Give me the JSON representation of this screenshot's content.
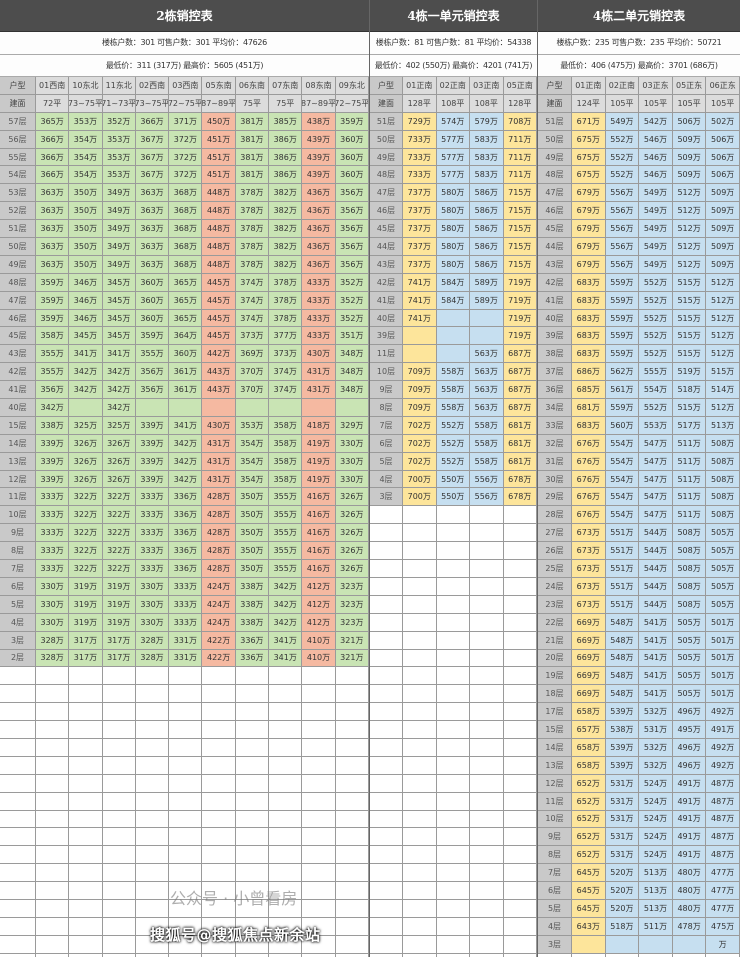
{
  "colors": {
    "green": "#c9e4b4",
    "salmon": "#f5b9a1",
    "yellow": "#fde59b",
    "blue": "#c6dff0"
  },
  "tables": [
    {
      "title": "2栋销控表",
      "info1": "楼栋户数：301 可售户数：301 平均价：47626",
      "info2": "最低价：311 (317万) 最高价：5605 (451万)",
      "type_label": "户型",
      "area_label": "建面",
      "columns": [
        {
          "name": "01西南",
          "area": "72平",
          "color": "green"
        },
        {
          "name": "10东北",
          "area": "73~75平",
          "color": "green"
        },
        {
          "name": "11东北",
          "area": "71~73平",
          "color": "green"
        },
        {
          "name": "02西南",
          "area": "73~75平",
          "color": "green"
        },
        {
          "name": "03西南",
          "area": "72~75平",
          "color": "green"
        },
        {
          "name": "05东南",
          "area": "87~89平",
          "color": "salmon"
        },
        {
          "name": "06东南",
          "area": "75平",
          "color": "green"
        },
        {
          "name": "07东南",
          "area": "75平",
          "color": "green"
        },
        {
          "name": "08东南",
          "area": "87~89平",
          "color": "salmon"
        },
        {
          "name": "09东北",
          "area": "72~75平",
          "color": "green"
        }
      ],
      "rows": [
        [
          "57层",
          "365万",
          "353万",
          "352万",
          "366万",
          "371万",
          "450万",
          "381万",
          "385万",
          "438万",
          "359万"
        ],
        [
          "56层",
          "366万",
          "354万",
          "353万",
          "367万",
          "372万",
          "451万",
          "381万",
          "386万",
          "439万",
          "360万"
        ],
        [
          "55层",
          "366万",
          "354万",
          "353万",
          "367万",
          "372万",
          "451万",
          "381万",
          "386万",
          "439万",
          "360万"
        ],
        [
          "54层",
          "366万",
          "354万",
          "353万",
          "367万",
          "372万",
          "451万",
          "381万",
          "386万",
          "439万",
          "360万"
        ],
        [
          "53层",
          "363万",
          "350万",
          "349万",
          "363万",
          "368万",
          "448万",
          "378万",
          "382万",
          "436万",
          "356万"
        ],
        [
          "52层",
          "363万",
          "350万",
          "349万",
          "363万",
          "368万",
          "448万",
          "378万",
          "382万",
          "436万",
          "356万"
        ],
        [
          "51层",
          "363万",
          "350万",
          "349万",
          "363万",
          "368万",
          "448万",
          "378万",
          "382万",
          "436万",
          "356万"
        ],
        [
          "50层",
          "363万",
          "350万",
          "349万",
          "363万",
          "368万",
          "448万",
          "378万",
          "382万",
          "436万",
          "356万"
        ],
        [
          "49层",
          "363万",
          "350万",
          "349万",
          "363万",
          "368万",
          "448万",
          "378万",
          "382万",
          "436万",
          "356万"
        ],
        [
          "48层",
          "359万",
          "346万",
          "345万",
          "360万",
          "365万",
          "445万",
          "374万",
          "378万",
          "433万",
          "352万"
        ],
        [
          "47层",
          "359万",
          "346万",
          "345万",
          "360万",
          "365万",
          "445万",
          "374万",
          "378万",
          "433万",
          "352万"
        ],
        [
          "46层",
          "359万",
          "346万",
          "345万",
          "360万",
          "365万",
          "445万",
          "374万",
          "378万",
          "433万",
          "352万"
        ],
        [
          "45层",
          "358万",
          "345万",
          "345万",
          "359万",
          "364万",
          "445万",
          "373万",
          "377万",
          "433万",
          "351万"
        ],
        [
          "43层",
          "355万",
          "341万",
          "341万",
          "355万",
          "360万",
          "442万",
          "369万",
          "373万",
          "430万",
          "348万"
        ],
        [
          "42层",
          "355万",
          "342万",
          "342万",
          "356万",
          "361万",
          "443万",
          "370万",
          "374万",
          "431万",
          "348万"
        ],
        [
          "41层",
          "356万",
          "342万",
          "342万",
          "356万",
          "361万",
          "443万",
          "370万",
          "374万",
          "431万",
          "348万"
        ],
        [
          "40层",
          "342万",
          "",
          "342万",
          "",
          "",
          "",
          "",
          "",
          "",
          ""
        ],
        [
          "15层",
          "338万",
          "325万",
          "325万",
          "339万",
          "341万",
          "430万",
          "353万",
          "358万",
          "418万",
          "329万"
        ],
        [
          "14层",
          "339万",
          "326万",
          "326万",
          "339万",
          "342万",
          "431万",
          "354万",
          "358万",
          "419万",
          "330万"
        ],
        [
          "13层",
          "339万",
          "326万",
          "326万",
          "339万",
          "342万",
          "431万",
          "354万",
          "358万",
          "419万",
          "330万"
        ],
        [
          "12层",
          "339万",
          "326万",
          "326万",
          "339万",
          "342万",
          "431万",
          "354万",
          "358万",
          "419万",
          "330万"
        ],
        [
          "11层",
          "333万",
          "322万",
          "322万",
          "333万",
          "336万",
          "428万",
          "350万",
          "355万",
          "416万",
          "326万"
        ],
        [
          "10层",
          "333万",
          "322万",
          "322万",
          "333万",
          "336万",
          "428万",
          "350万",
          "355万",
          "416万",
          "326万"
        ],
        [
          "9层",
          "333万",
          "322万",
          "322万",
          "333万",
          "336万",
          "428万",
          "350万",
          "355万",
          "416万",
          "326万"
        ],
        [
          "8层",
          "333万",
          "322万",
          "322万",
          "333万",
          "336万",
          "428万",
          "350万",
          "355万",
          "416万",
          "326万"
        ],
        [
          "7层",
          "333万",
          "322万",
          "322万",
          "333万",
          "336万",
          "428万",
          "350万",
          "355万",
          "416万",
          "326万"
        ],
        [
          "6层",
          "330万",
          "319万",
          "319万",
          "330万",
          "333万",
          "424万",
          "338万",
          "342万",
          "412万",
          "323万"
        ],
        [
          "5层",
          "330万",
          "319万",
          "319万",
          "330万",
          "333万",
          "424万",
          "338万",
          "342万",
          "412万",
          "323万"
        ],
        [
          "4层",
          "330万",
          "319万",
          "319万",
          "330万",
          "333万",
          "424万",
          "338万",
          "342万",
          "412万",
          "323万"
        ],
        [
          "3层",
          "328万",
          "317万",
          "317万",
          "328万",
          "331万",
          "422万",
          "336万",
          "341万",
          "410万",
          "321万"
        ],
        [
          "2层",
          "328万",
          "317万",
          "317万",
          "328万",
          "331万",
          "422万",
          "336万",
          "341万",
          "410万",
          "321万"
        ]
      ]
    },
    {
      "title": "4栋一单元销控表",
      "info1": "楼栋户数：81 可售户数：81 平均价：54338",
      "info2": "最低价：402 (550万) 最高价：4201 (741万)",
      "type_label": "户型",
      "area_label": "建面",
      "columns": [
        {
          "name": "01正南",
          "area": "128平",
          "color": "yellow"
        },
        {
          "name": "02正南",
          "area": "108平",
          "color": "blue"
        },
        {
          "name": "03正南",
          "area": "108平",
          "color": "blue"
        },
        {
          "name": "05正南",
          "area": "128平",
          "color": "yellow"
        }
      ],
      "rows": [
        [
          "51层",
          "729万",
          "574万",
          "579万",
          "708万"
        ],
        [
          "50层",
          "733万",
          "577万",
          "583万",
          "711万"
        ],
        [
          "49层",
          "733万",
          "577万",
          "583万",
          "711万"
        ],
        [
          "48层",
          "733万",
          "577万",
          "583万",
          "711万"
        ],
        [
          "47层",
          "737万",
          "580万",
          "586万",
          "715万"
        ],
        [
          "46层",
          "737万",
          "580万",
          "586万",
          "715万"
        ],
        [
          "45层",
          "737万",
          "580万",
          "586万",
          "715万"
        ],
        [
          "44层",
          "737万",
          "580万",
          "586万",
          "715万"
        ],
        [
          "43层",
          "737万",
          "580万",
          "586万",
          "715万"
        ],
        [
          "42层",
          "741万",
          "584万",
          "589万",
          "719万"
        ],
        [
          "41层",
          "741万",
          "584万",
          "589万",
          "719万"
        ],
        [
          "40层",
          "741万",
          "",
          "",
          "719万"
        ],
        [
          "39层",
          "",
          "",
          "",
          "719万"
        ],
        [
          "11层",
          "",
          "",
          "563万",
          "687万"
        ],
        [
          "10层",
          "709万",
          "558万",
          "563万",
          "687万"
        ],
        [
          "9层",
          "709万",
          "558万",
          "563万",
          "687万"
        ],
        [
          "8层",
          "709万",
          "558万",
          "563万",
          "687万"
        ],
        [
          "7层",
          "702万",
          "552万",
          "558万",
          "681万"
        ],
        [
          "6层",
          "702万",
          "552万",
          "558万",
          "681万"
        ],
        [
          "5层",
          "702万",
          "552万",
          "558万",
          "681万"
        ],
        [
          "4层",
          "700万",
          "550万",
          "556万",
          "678万"
        ],
        [
          "3层",
          "700万",
          "550万",
          "556万",
          "678万"
        ]
      ]
    },
    {
      "title": "4栋二单元销控表",
      "info1": "楼栋户数：235 可售户数：235 平均价：50721",
      "info2": "最低价：406 (475万) 最高价：3701 (686万)",
      "type_label": "户型",
      "area_label": "建面",
      "columns": [
        {
          "name": "01正南",
          "area": "124平",
          "color": "yellow"
        },
        {
          "name": "02正南",
          "area": "105平",
          "color": "blue"
        },
        {
          "name": "03正东",
          "area": "105平",
          "color": "blue"
        },
        {
          "name": "05正东",
          "area": "105平",
          "color": "blue"
        },
        {
          "name": "06正东",
          "area": "105平",
          "color": "blue"
        }
      ],
      "rows": [
        [
          "51层",
          "671万",
          "549万",
          "542万",
          "506万",
          "502万"
        ],
        [
          "50层",
          "675万",
          "552万",
          "546万",
          "509万",
          "506万"
        ],
        [
          "49层",
          "675万",
          "552万",
          "546万",
          "509万",
          "506万"
        ],
        [
          "48层",
          "675万",
          "552万",
          "546万",
          "509万",
          "506万"
        ],
        [
          "47层",
          "679万",
          "556万",
          "549万",
          "512万",
          "509万"
        ],
        [
          "46层",
          "679万",
          "556万",
          "549万",
          "512万",
          "509万"
        ],
        [
          "45层",
          "679万",
          "556万",
          "549万",
          "512万",
          "509万"
        ],
        [
          "44层",
          "679万",
          "556万",
          "549万",
          "512万",
          "509万"
        ],
        [
          "43层",
          "679万",
          "556万",
          "549万",
          "512万",
          "509万"
        ],
        [
          "42层",
          "683万",
          "559万",
          "552万",
          "515万",
          "512万"
        ],
        [
          "41层",
          "683万",
          "559万",
          "552万",
          "515万",
          "512万"
        ],
        [
          "40层",
          "683万",
          "559万",
          "552万",
          "515万",
          "512万"
        ],
        [
          "39层",
          "683万",
          "559万",
          "552万",
          "515万",
          "512万"
        ],
        [
          "38层",
          "683万",
          "559万",
          "552万",
          "515万",
          "512万"
        ],
        [
          "37层",
          "686万",
          "562万",
          "555万",
          "519万",
          "515万"
        ],
        [
          "36层",
          "685万",
          "561万",
          "554万",
          "518万",
          "514万"
        ],
        [
          "34层",
          "681万",
          "559万",
          "552万",
          "515万",
          "512万"
        ],
        [
          "33层",
          "683万",
          "560万",
          "553万",
          "517万",
          "513万"
        ],
        [
          "32层",
          "676万",
          "554万",
          "547万",
          "511万",
          "508万"
        ],
        [
          "31层",
          "676万",
          "554万",
          "547万",
          "511万",
          "508万"
        ],
        [
          "30层",
          "676万",
          "554万",
          "547万",
          "511万",
          "508万"
        ],
        [
          "29层",
          "676万",
          "554万",
          "547万",
          "511万",
          "508万"
        ],
        [
          "28层",
          "676万",
          "554万",
          "547万",
          "511万",
          "508万"
        ],
        [
          "27层",
          "673万",
          "551万",
          "544万",
          "508万",
          "505万"
        ],
        [
          "26层",
          "673万",
          "551万",
          "544万",
          "508万",
          "505万"
        ],
        [
          "25层",
          "673万",
          "551万",
          "544万",
          "508万",
          "505万"
        ],
        [
          "24层",
          "673万",
          "551万",
          "544万",
          "508万",
          "505万"
        ],
        [
          "23层",
          "673万",
          "551万",
          "544万",
          "508万",
          "505万"
        ],
        [
          "22层",
          "669万",
          "548万",
          "541万",
          "505万",
          "501万"
        ],
        [
          "21层",
          "669万",
          "548万",
          "541万",
          "505万",
          "501万"
        ],
        [
          "20层",
          "669万",
          "548万",
          "541万",
          "505万",
          "501万"
        ],
        [
          "19层",
          "669万",
          "548万",
          "541万",
          "505万",
          "501万"
        ],
        [
          "18层",
          "669万",
          "548万",
          "541万",
          "505万",
          "501万"
        ],
        [
          "17层",
          "658万",
          "539万",
          "532万",
          "496万",
          "492万"
        ],
        [
          "15层",
          "657万",
          "538万",
          "531万",
          "495万",
          "491万"
        ],
        [
          "14层",
          "658万",
          "539万",
          "532万",
          "496万",
          "492万"
        ],
        [
          "13层",
          "658万",
          "539万",
          "532万",
          "496万",
          "492万"
        ],
        [
          "12层",
          "652万",
          "531万",
          "524万",
          "491万",
          "487万"
        ],
        [
          "11层",
          "652万",
          "531万",
          "524万",
          "491万",
          "487万"
        ],
        [
          "10层",
          "652万",
          "531万",
          "524万",
          "491万",
          "487万"
        ],
        [
          "9层",
          "652万",
          "531万",
          "524万",
          "491万",
          "487万"
        ],
        [
          "8层",
          "652万",
          "531万",
          "524万",
          "491万",
          "487万"
        ],
        [
          "7层",
          "645万",
          "520万",
          "513万",
          "480万",
          "477万"
        ],
        [
          "6层",
          "645万",
          "520万",
          "513万",
          "480万",
          "477万"
        ],
        [
          "5层",
          "645万",
          "520万",
          "513万",
          "480万",
          "477万"
        ],
        [
          "4层",
          "643万",
          "518万",
          "511万",
          "478万",
          "475万"
        ],
        [
          "3层",
          "",
          "",
          "",
          "",
          "万"
        ]
      ]
    }
  ],
  "watermark_account": "公众号 · 小曾看房",
  "watermark_source": "搜狐号@搜狐焦点新余站"
}
